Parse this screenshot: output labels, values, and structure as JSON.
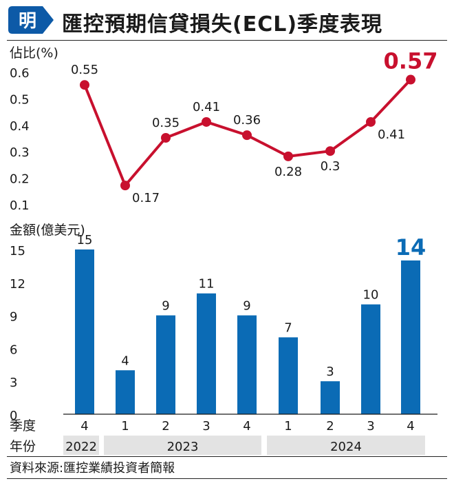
{
  "header": {
    "logo_char": "明",
    "title": "匯控預期信貸損失(ECL)季度表現"
  },
  "colors": {
    "line": "#c8102e",
    "bar": "#0b6bb5",
    "band": "#e3e3e3",
    "logo": "#0d5aa7"
  },
  "chart_data": [
    {
      "type": "line",
      "ylabel": "佔比(%)",
      "yticks": [
        0.1,
        0.2,
        0.3,
        0.4,
        0.5,
        0.6
      ],
      "ylim": [
        0.1,
        0.6
      ],
      "categories": [
        "2022 Q4",
        "2023 Q1",
        "2023 Q2",
        "2023 Q3",
        "2023 Q4",
        "2024 Q1",
        "2024 Q2",
        "2024 Q3",
        "2024 Q4"
      ],
      "values": [
        0.55,
        0.17,
        0.35,
        0.41,
        0.36,
        0.28,
        0.3,
        0.41,
        0.57
      ],
      "labels": [
        "0.55",
        "0.17",
        "0.35",
        "0.41",
        "0.36",
        "0.28",
        "0.3",
        "0.41",
        "0.57"
      ],
      "highlight_last": true
    },
    {
      "type": "bar",
      "ylabel": "金額(億美元)",
      "yticks": [
        0,
        3,
        6,
        9,
        12,
        15
      ],
      "ylim": [
        0,
        15
      ],
      "categories": [
        "2022 Q4",
        "2023 Q1",
        "2023 Q2",
        "2023 Q3",
        "2023 Q4",
        "2024 Q1",
        "2024 Q2",
        "2024 Q3",
        "2024 Q4"
      ],
      "values": [
        15,
        4,
        9,
        11,
        9,
        7,
        3,
        10,
        14
      ],
      "labels": [
        "15",
        "4",
        "9",
        "11",
        "9",
        "7",
        "3",
        "10",
        "14"
      ],
      "highlight_last": true
    }
  ],
  "x_axis": {
    "quarter_label": "季度",
    "quarters": [
      "4",
      "1",
      "2",
      "3",
      "4",
      "1",
      "2",
      "3",
      "4"
    ],
    "year_label": "年份",
    "years": [
      {
        "label": "2022",
        "span": [
          0,
          0
        ],
        "shaded": true
      },
      {
        "label": "2023",
        "span": [
          1,
          4
        ],
        "shaded": true
      },
      {
        "label": "2024",
        "span": [
          5,
          8
        ],
        "shaded": true
      }
    ]
  },
  "footer": {
    "source": "資料來源:匯控業績投資者簡報"
  }
}
